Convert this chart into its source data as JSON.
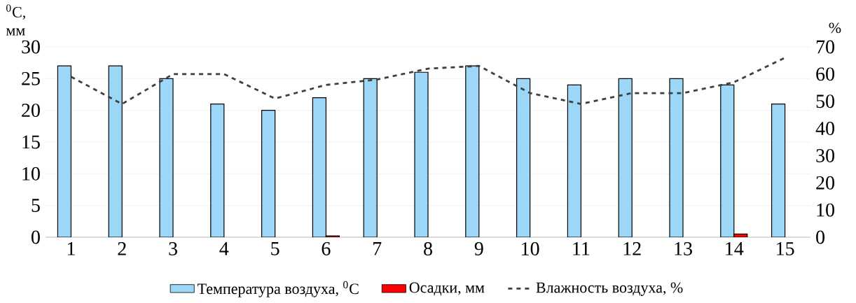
{
  "chart_data": {
    "type": "bar",
    "categories": [
      "1",
      "2",
      "3",
      "4",
      "5",
      "6",
      "7",
      "8",
      "9",
      "10",
      "11",
      "12",
      "13",
      "14",
      "15"
    ],
    "series": [
      {
        "name": "Температура воздуха, $^{0}$C",
        "color": "#9dd7f8",
        "values": [
          27,
          27,
          25,
          21,
          20,
          22,
          25,
          26,
          27,
          25,
          24,
          25,
          25,
          24,
          21
        ]
      },
      {
        "name": "Осадки, мм",
        "color": "#ff0000",
        "values": [
          null,
          null,
          null,
          null,
          null,
          0.2,
          null,
          null,
          null,
          null,
          null,
          null,
          null,
          0.5,
          null
        ]
      },
      {
        "name": "Влажность воздуха, %",
        "type": "line",
        "axis": "y2",
        "line_style": "dashed",
        "color": "#404040",
        "values": [
          59,
          49,
          60,
          60,
          51,
          56,
          58,
          62,
          63,
          53,
          49,
          53,
          53,
          57,
          66
        ]
      }
    ],
    "ylabel": "$^{0}$C, мм",
    "y2label": "%",
    "ylim": [
      0,
      30
    ],
    "yticks": [
      0,
      5,
      10,
      15,
      20,
      25,
      30
    ],
    "y2lim": [
      0,
      70
    ],
    "y2ticks": [
      0,
      10,
      20,
      30,
      40,
      50,
      60,
      70
    ],
    "grid": "y",
    "legend": "bottom"
  }
}
